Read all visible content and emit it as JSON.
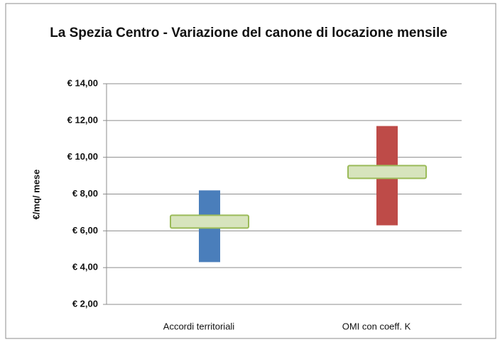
{
  "chart_data": {
    "type": "rangebar",
    "title": "La Spezia Centro  - Variazione del canone di locazione mensile",
    "ylabel": "€/mq/ mese",
    "categories": [
      "Accordi territoriali",
      "OMI con coeff. K"
    ],
    "lows": [
      4.3,
      6.3
    ],
    "highs": [
      8.2,
      11.7
    ],
    "means": [
      6.5,
      9.2
    ],
    "colors": [
      "#4a7ebb",
      "#be4b48"
    ],
    "marker_color": "#d7e4bd",
    "ylim": [
      2,
      14
    ],
    "yticks": [
      {
        "value": 2,
        "label": "€ 2,00"
      },
      {
        "value": 4,
        "label": "€ 4,00"
      },
      {
        "value": 6,
        "label": "€ 6,00"
      },
      {
        "value": 8,
        "label": "€ 8,00"
      },
      {
        "value": 10,
        "label": "€ 10,00"
      },
      {
        "value": 12,
        "label": "€ 12,00"
      },
      {
        "value": 14,
        "label": "€ 14,00"
      }
    ],
    "grid": true
  }
}
